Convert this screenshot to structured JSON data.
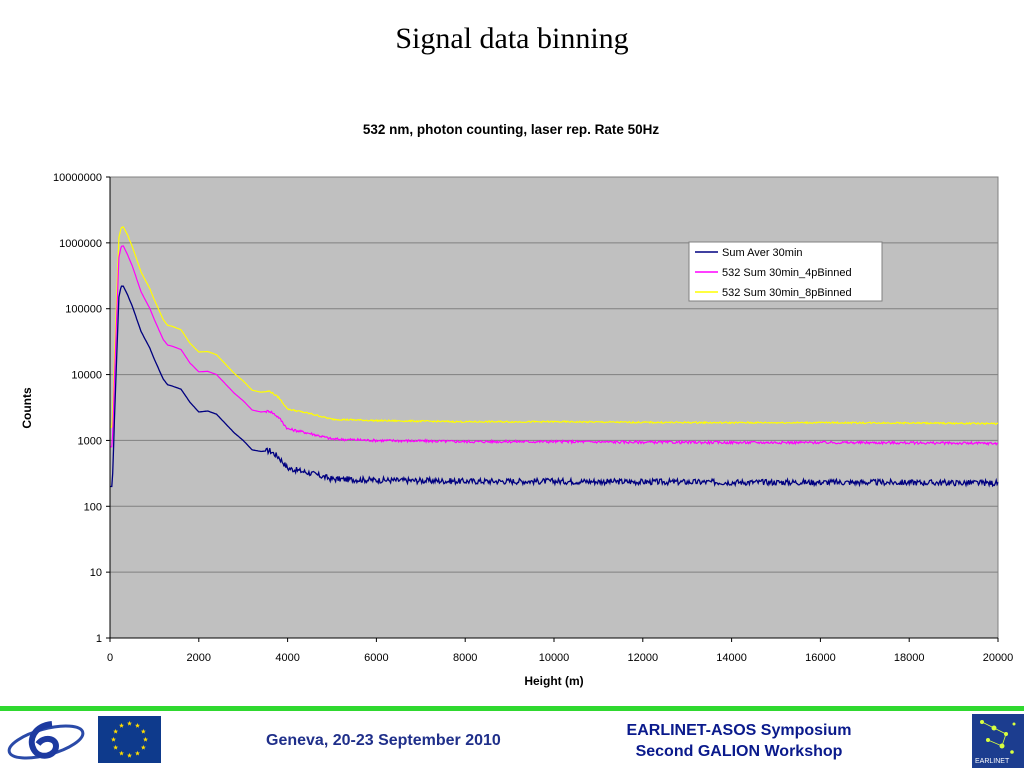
{
  "slide": {
    "title": "Signal data binning"
  },
  "chart_data": {
    "type": "line",
    "title": "532 nm, photon counting, laser rep. Rate 50Hz",
    "xlabel": "Height (m)",
    "ylabel": "Counts",
    "x_scale": "linear",
    "y_scale": "log",
    "xlim": [
      0,
      20000
    ],
    "ylim": [
      1,
      10000000
    ],
    "x_ticks": [
      "0",
      "2000",
      "4000",
      "6000",
      "8000",
      "10000",
      "12000",
      "14000",
      "16000",
      "18000",
      "20000"
    ],
    "y_ticks": [
      "1",
      "10",
      "100",
      "1000",
      "10000",
      "100000",
      "1000000",
      "10000000"
    ],
    "grid": "horizontal",
    "legend_position": "top-right",
    "series": [
      {
        "name": "Sum Aver 30min",
        "color": "#000080",
        "x": [
          0,
          50,
          100,
          150,
          200,
          250,
          300,
          400,
          500,
          700,
          900,
          1000,
          1200,
          1300,
          1400,
          1600,
          1800,
          2000,
          2200,
          2400,
          2600,
          2800,
          3000,
          3200,
          3400,
          3600,
          3800,
          4000,
          4500,
          5000,
          6000,
          8000,
          10000,
          12000,
          14000,
          16000,
          18000,
          20000
        ],
        "y": [
          200,
          200,
          2000,
          18000,
          150000,
          220000,
          220000,
          160000,
          110000,
          45000,
          25000,
          17000,
          8500,
          7000,
          6700,
          6000,
          3800,
          2700,
          2800,
          2500,
          1800,
          1300,
          1000,
          720,
          680,
          700,
          560,
          380,
          320,
          260,
          250,
          240,
          240,
          235,
          232,
          232,
          230,
          225
        ]
      },
      {
        "name": "532 Sum 30min_4pBinned",
        "color": "#ff00ff",
        "x": [
          0,
          50,
          100,
          150,
          200,
          250,
          300,
          400,
          500,
          700,
          900,
          1000,
          1200,
          1300,
          1400,
          1600,
          1800,
          2000,
          2200,
          2400,
          2600,
          2800,
          3000,
          3200,
          3400,
          3600,
          3800,
          4000,
          4500,
          5000,
          6000,
          8000,
          10000,
          12000,
          14000,
          16000,
          18000,
          20000
        ],
        "y": [
          800,
          800,
          8000,
          72000,
          600000,
          880000,
          900000,
          650000,
          450000,
          180000,
          100000,
          68000,
          34000,
          28000,
          27000,
          24000,
          15000,
          11000,
          11200,
          10000,
          7200,
          5200,
          4000,
          2900,
          2700,
          2800,
          2240,
          1500,
          1280,
          1050,
          1000,
          960,
          960,
          940,
          930,
          930,
          920,
          900
        ]
      },
      {
        "name": "532 Sum 30min_8pBinned",
        "color": "#ffff00",
        "x": [
          0,
          50,
          100,
          150,
          200,
          250,
          300,
          400,
          500,
          700,
          900,
          1000,
          1200,
          1300,
          1400,
          1600,
          1800,
          2000,
          2200,
          2400,
          2600,
          2800,
          3000,
          3200,
          3400,
          3600,
          3800,
          4000,
          4500,
          5000,
          6000,
          8000,
          10000,
          12000,
          14000,
          16000,
          18000,
          20000
        ],
        "y": [
          1600,
          1600,
          16000,
          144000,
          1200000,
          1700000,
          1750000,
          1300000,
          880000,
          360000,
          200000,
          136000,
          68000,
          56000,
          54000,
          48000,
          30000,
          22000,
          22400,
          20000,
          14400,
          10400,
          8000,
          5800,
          5400,
          5600,
          4480,
          3000,
          2560,
          2100,
          2000,
          1920,
          1920,
          1880,
          1860,
          1860,
          1840,
          1800
        ]
      }
    ]
  },
  "footer": {
    "date": "Geneva, 20-23 September 2010",
    "event_line1": "EARLINET-ASOS Symposium",
    "event_line2": "Second GALION Workshop",
    "earlinet_logo_text": "EARLINET"
  }
}
